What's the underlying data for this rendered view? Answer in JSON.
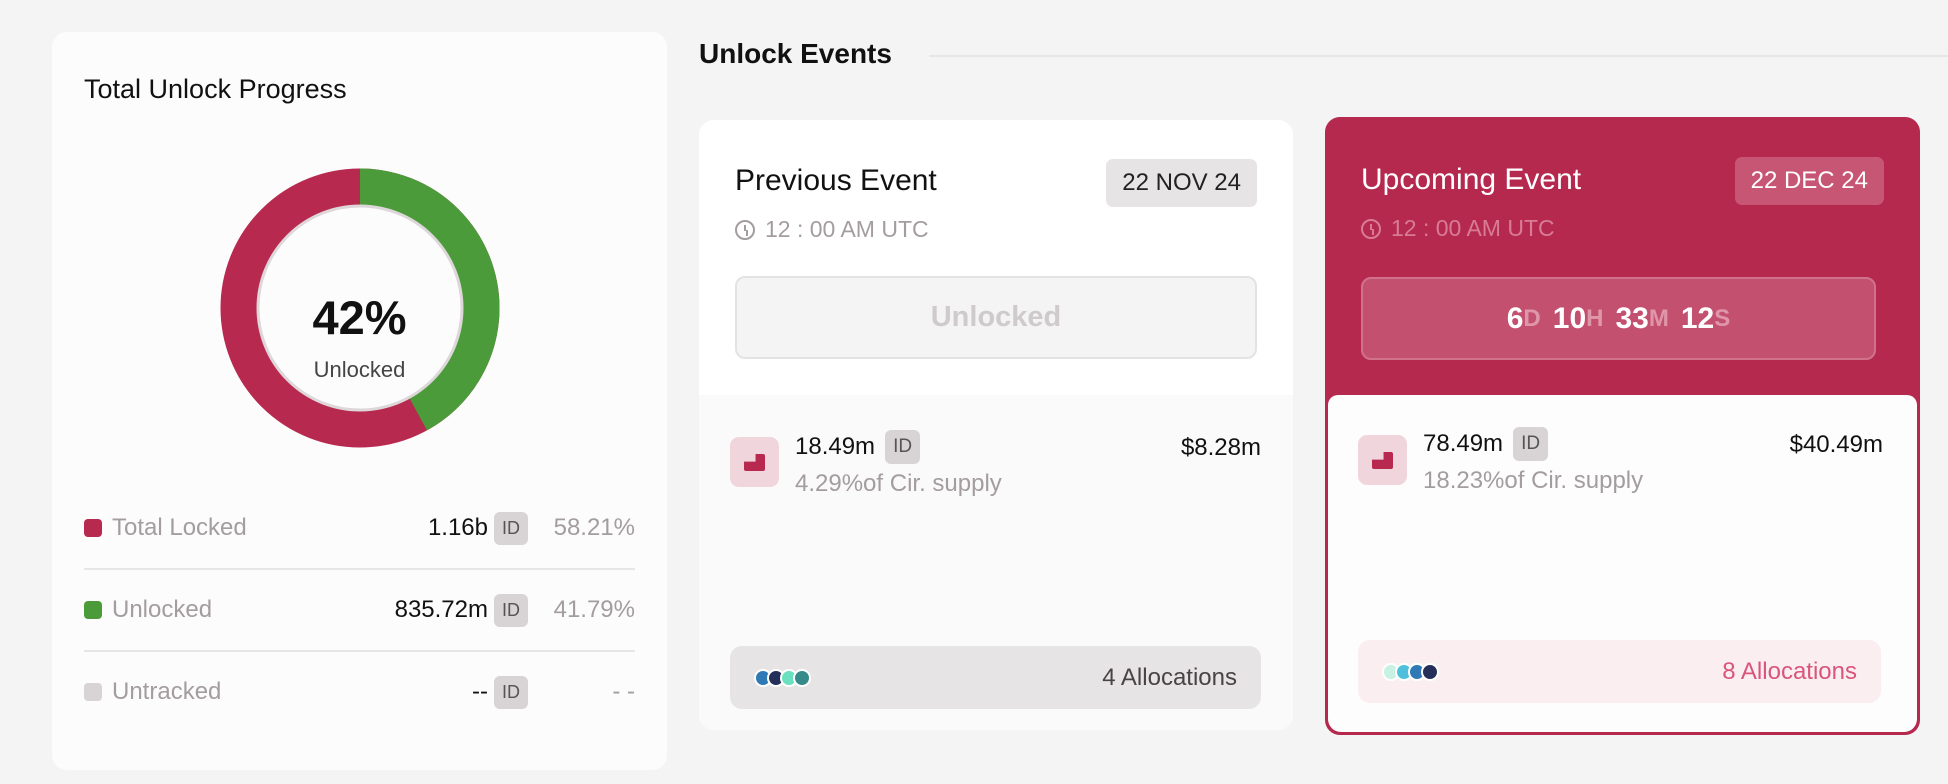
{
  "progress": {
    "title": "Total Unlock Progress",
    "unlocked_percent": 42,
    "percent_label": "42%",
    "center_label": "Unlocked",
    "colors": {
      "locked": "#b8294f",
      "unlocked": "#4b9b3a",
      "untracked": "#d8d3d5"
    },
    "legend": [
      {
        "name": "Total Locked",
        "value": "1.16b",
        "badge": "ID",
        "percent": "58.21%",
        "color": "#b8294f"
      },
      {
        "name": "Unlocked",
        "value": "835.72m",
        "badge": "ID",
        "percent": "41.79%",
        "color": "#4b9b3a"
      },
      {
        "name": "Untracked",
        "value": "--",
        "badge": "ID",
        "percent": "- -",
        "color": "#d8d3d5"
      }
    ]
  },
  "events": {
    "title": "Unlock Events",
    "previous": {
      "title": "Previous Event",
      "date": "22 NOV 24",
      "time": "12 : 00 AM UTC",
      "status": "Unlocked",
      "amount": "18.49m",
      "badge": "ID",
      "supply": "4.29%of Cir. supply",
      "usd": "$8.28m",
      "allocations": "4 Allocations",
      "dot_colors": [
        "#2f7ab5",
        "#25305a",
        "#6be0bf",
        "#378a8a"
      ]
    },
    "upcoming": {
      "title": "Upcoming Event",
      "date": "22 DEC 24",
      "time": "12 : 00 AM UTC",
      "countdown": {
        "days": "6",
        "d": "D",
        "hours": "10",
        "h": "H",
        "minutes": "33",
        "m": "M",
        "seconds": "12",
        "s": "S"
      },
      "amount": "78.49m",
      "badge": "ID",
      "supply": "18.23%of Cir. supply",
      "usd": "$40.49m",
      "allocations": "8 Allocations",
      "accent": "#b5294f",
      "dot_colors": [
        "#c7f1e3",
        "#4fc0dc",
        "#2f7ab5",
        "#25305a"
      ]
    }
  }
}
